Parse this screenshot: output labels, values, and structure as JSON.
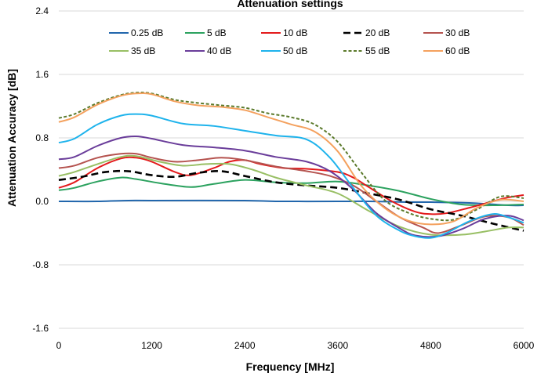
{
  "chart_data": {
    "type": "line",
    "title": "Attenuation settings",
    "xlabel": "Frequency [MHz]",
    "ylabel": "Attenuation Accuracy [dB]",
    "xlim": [
      0,
      6000
    ],
    "ylim": [
      -1.6,
      2.4
    ],
    "xticks": [
      0,
      1200,
      2400,
      3600,
      4800,
      6000
    ],
    "yticks": [
      -1.6,
      -0.8,
      0.0,
      0.8,
      1.6,
      2.4
    ],
    "xtick_labels": [
      "0",
      "1200",
      "2400",
      "3600",
      "4800",
      "6000"
    ],
    "ytick_labels": [
      "-1.6",
      "-0.8",
      "0.0",
      "0.8",
      "1.6",
      "2.4"
    ],
    "grid": "horizontal",
    "legend": "top",
    "series": [
      {
        "name": "0.25 dB",
        "color": "#2166ac",
        "dash": "solid",
        "x": [
          0,
          500,
          900,
          1200,
          2400,
          2800,
          3600,
          4000,
          4500,
          4800,
          5300,
          5800,
          6000
        ],
        "y": [
          0.0,
          0.0,
          0.01,
          0.01,
          0.01,
          0.0,
          0.0,
          0.0,
          -0.01,
          -0.01,
          -0.02,
          -0.05,
          -0.05
        ]
      },
      {
        "name": "5 dB",
        "color": "#2ca25f",
        "dash": "solid",
        "x": [
          0,
          200,
          500,
          800,
          1000,
          1300,
          1700,
          2000,
          2400,
          2800,
          3200,
          3600,
          4000,
          4400,
          4800,
          5200,
          5600,
          6000
        ],
        "y": [
          0.14,
          0.17,
          0.25,
          0.3,
          0.28,
          0.23,
          0.18,
          0.22,
          0.27,
          0.24,
          0.23,
          0.25,
          0.2,
          0.13,
          0.03,
          -0.04,
          -0.05,
          -0.04
        ]
      },
      {
        "name": "10 dB",
        "color": "#e31a1c",
        "dash": "solid",
        "x": [
          0,
          200,
          500,
          800,
          1000,
          1200,
          1500,
          1700,
          2000,
          2200,
          2400,
          2600,
          2900,
          3200,
          3600,
          3800,
          4000,
          4300,
          4600,
          4800,
          5000,
          5300,
          5600,
          5800,
          6000
        ],
        "y": [
          0.17,
          0.24,
          0.42,
          0.54,
          0.55,
          0.5,
          0.37,
          0.33,
          0.42,
          0.5,
          0.52,
          0.47,
          0.42,
          0.41,
          0.37,
          0.3,
          0.18,
          0.0,
          -0.13,
          -0.16,
          -0.15,
          -0.08,
          0.0,
          0.05,
          0.08
        ]
      },
      {
        "name": "20 dB",
        "color": "#000000",
        "dash": "9,5",
        "width": 2.6,
        "x": [
          0,
          300,
          600,
          900,
          1200,
          1500,
          1800,
          2100,
          2400,
          2800,
          3200,
          3600,
          4000,
          4400,
          4800,
          5200,
          5600,
          6000
        ],
        "y": [
          0.27,
          0.31,
          0.37,
          0.38,
          0.33,
          0.31,
          0.36,
          0.38,
          0.32,
          0.24,
          0.2,
          0.17,
          0.1,
          0.02,
          -0.1,
          -0.18,
          -0.28,
          -0.37
        ]
      },
      {
        "name": "30 dB",
        "color": "#b5534f",
        "dash": "solid",
        "x": [
          0,
          200,
          500,
          800,
          1000,
          1200,
          1500,
          1800,
          2100,
          2400,
          2800,
          3200,
          3500,
          3800,
          4100,
          4400,
          4700,
          4900,
          5200,
          5500,
          5800,
          6000
        ],
        "y": [
          0.42,
          0.45,
          0.55,
          0.6,
          0.6,
          0.55,
          0.5,
          0.52,
          0.55,
          0.52,
          0.44,
          0.38,
          0.32,
          0.2,
          0.0,
          -0.2,
          -0.33,
          -0.4,
          -0.3,
          -0.19,
          -0.2,
          -0.3
        ]
      },
      {
        "name": "35 dB",
        "color": "#98bf64",
        "dash": "solid",
        "x": [
          0,
          200,
          500,
          800,
          1000,
          1300,
          1600,
          1900,
          2200,
          2500,
          2800,
          3200,
          3600,
          4000,
          4400,
          4800,
          5200,
          5500,
          5800,
          6000
        ],
        "y": [
          0.32,
          0.37,
          0.47,
          0.56,
          0.57,
          0.5,
          0.45,
          0.47,
          0.47,
          0.4,
          0.3,
          0.2,
          0.1,
          -0.12,
          -0.32,
          -0.42,
          -0.42,
          -0.38,
          -0.33,
          -0.33
        ]
      },
      {
        "name": "40 dB",
        "color": "#6a3d9a",
        "dash": "solid",
        "x": [
          0,
          200,
          500,
          800,
          1000,
          1200,
          1600,
          2000,
          2400,
          2800,
          3200,
          3500,
          3800,
          4100,
          4400,
          4600,
          4900,
          5200,
          5500,
          5800,
          6000
        ],
        "y": [
          0.53,
          0.56,
          0.7,
          0.8,
          0.82,
          0.79,
          0.71,
          0.68,
          0.64,
          0.56,
          0.5,
          0.38,
          0.15,
          -0.15,
          -0.34,
          -0.43,
          -0.44,
          -0.35,
          -0.22,
          -0.18,
          -0.24
        ]
      },
      {
        "name": "50 dB",
        "color": "#1eb3ec",
        "dash": "solid",
        "x": [
          0,
          200,
          500,
          800,
          1000,
          1200,
          1600,
          2000,
          2400,
          2800,
          3200,
          3500,
          3800,
          4100,
          4400,
          4600,
          4800,
          5000,
          5300,
          5600,
          5800,
          6000
        ],
        "y": [
          0.74,
          0.79,
          0.97,
          1.08,
          1.1,
          1.08,
          0.98,
          0.95,
          0.89,
          0.83,
          0.78,
          0.55,
          0.17,
          -0.18,
          -0.37,
          -0.44,
          -0.46,
          -0.4,
          -0.25,
          -0.16,
          -0.2,
          -0.27
        ]
      },
      {
        "name": "55 dB",
        "color": "#5b7a2b",
        "dash": "4,2.5",
        "x": [
          0,
          200,
          500,
          800,
          1000,
          1200,
          1500,
          1800,
          2100,
          2400,
          2700,
          3000,
          3300,
          3600,
          3900,
          4200,
          4500,
          4800,
          5100,
          5400,
          5700,
          6000
        ],
        "y": [
          1.05,
          1.1,
          1.24,
          1.34,
          1.37,
          1.36,
          1.28,
          1.24,
          1.21,
          1.18,
          1.11,
          1.06,
          0.97,
          0.75,
          0.37,
          0.02,
          -0.14,
          -0.22,
          -0.23,
          -0.1,
          0.06,
          0.04
        ]
      },
      {
        "name": "60 dB",
        "color": "#f4a15e",
        "dash": "solid",
        "x": [
          0,
          200,
          500,
          800,
          1000,
          1200,
          1500,
          1800,
          2100,
          2400,
          2700,
          3000,
          3300,
          3600,
          3900,
          4200,
          4500,
          4800,
          5100,
          5400,
          5700,
          6000
        ],
        "y": [
          1.0,
          1.06,
          1.22,
          1.33,
          1.36,
          1.35,
          1.26,
          1.21,
          1.19,
          1.15,
          1.06,
          0.97,
          0.88,
          0.63,
          0.2,
          -0.08,
          -0.24,
          -0.29,
          -0.25,
          -0.08,
          0.02,
          0.0
        ]
      }
    ]
  }
}
